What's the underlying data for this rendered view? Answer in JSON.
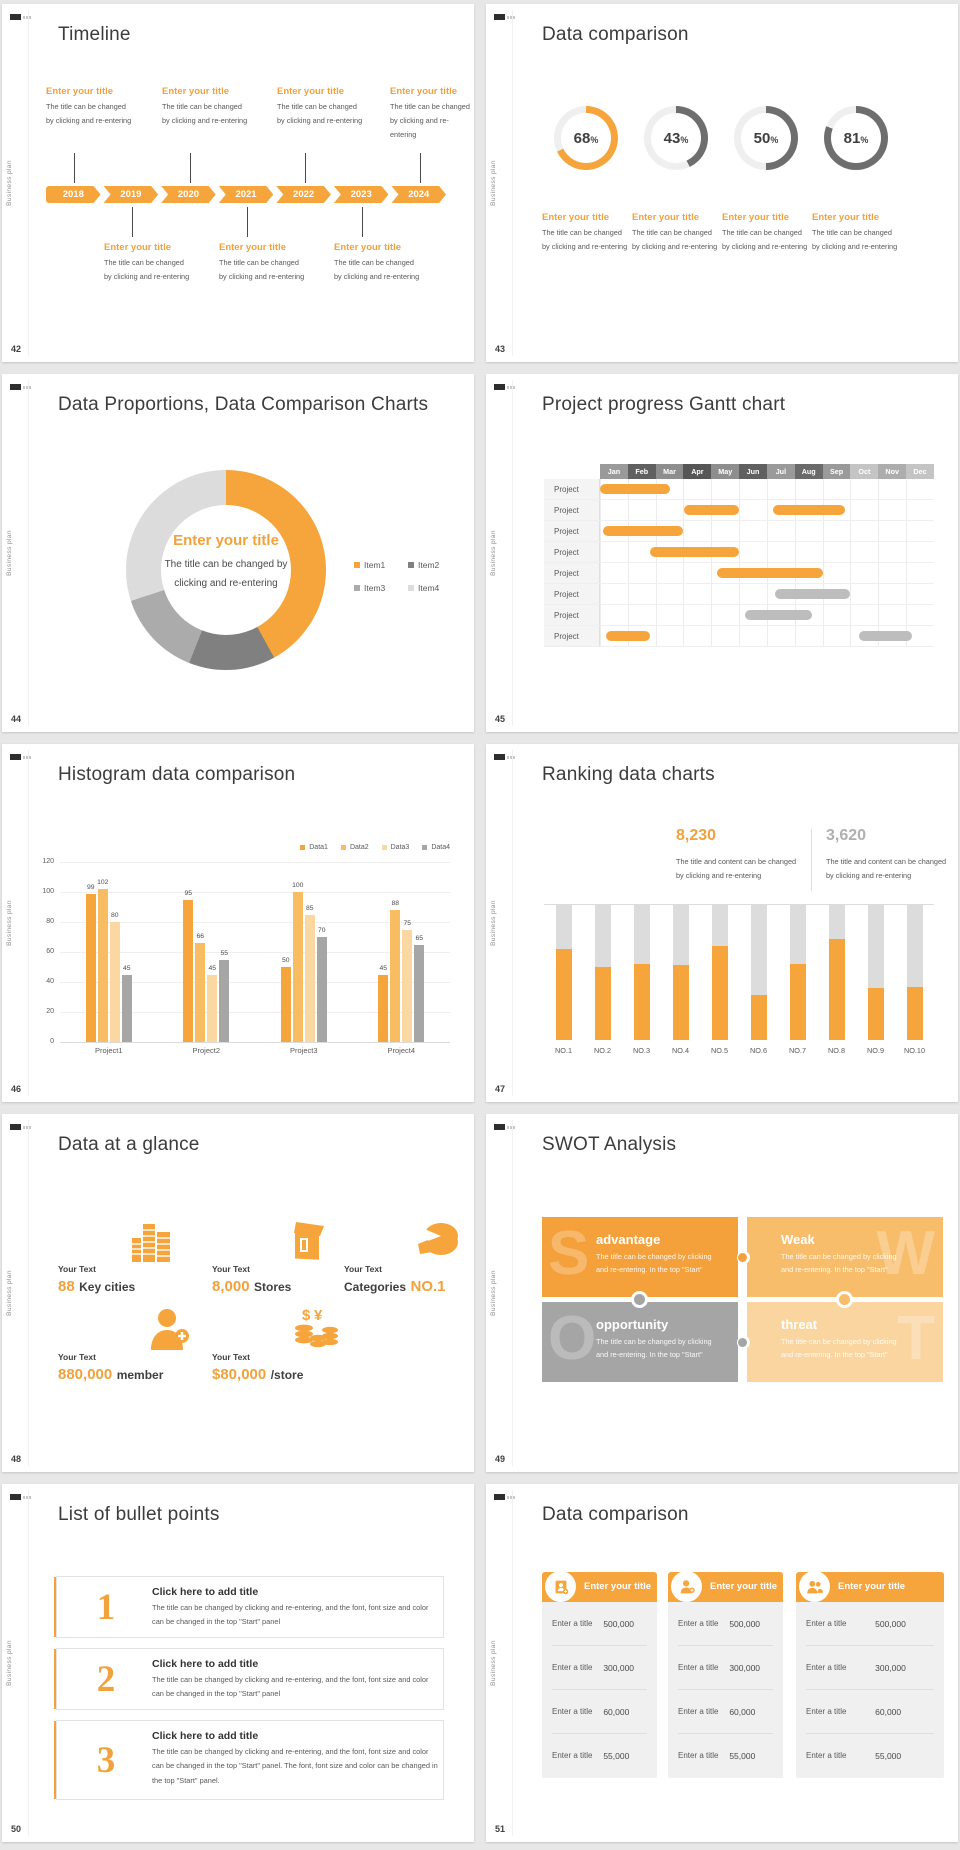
{
  "page": {
    "background": "#E7E7E7"
  },
  "colors": {
    "orange": "#F6A53C",
    "orange_light": "#F8BD6B",
    "orange_lighter": "#FBD7A2",
    "gray": "#A6A6A6",
    "gray_dark": "#707070",
    "text_dark": "#3F3F3F",
    "text_body": "#595959"
  },
  "common": {
    "sidebar_label": "Business plan"
  },
  "slide42": {
    "number": "42",
    "title": "Timeline",
    "years": [
      "2018",
      "2019",
      "2020",
      "2021",
      "2022",
      "2023",
      "2024"
    ],
    "top_items": [
      {
        "t": "Enter your title",
        "d1": "The title can be changed",
        "d2": "by clicking and re-entering"
      },
      {
        "t": "Enter your title",
        "d1": "The title can be changed",
        "d2": "by clicking and re-entering"
      },
      {
        "t": "Enter your title",
        "d1": "The title can be changed",
        "d2": "by clicking and re-entering"
      },
      {
        "t": "Enter your title",
        "d1": "The title can be changed",
        "d2": "by clicking and re-entering"
      }
    ],
    "bottom_items": [
      {
        "t": "Enter your title",
        "d1": "The title can be changed",
        "d2": "by clicking and re-entering"
      },
      {
        "t": "Enter your title",
        "d1": "The title can be changed",
        "d2": "by clicking and re-entering"
      },
      {
        "t": "Enter your title",
        "d1": "The title can be changed",
        "d2": "by clicking and re-entering"
      }
    ]
  },
  "slide43": {
    "number": "43",
    "title": "Data comparison",
    "ring_bg": "#EFEFEF",
    "donuts": [
      {
        "value": "68",
        "suffix": "%",
        "pct": 68,
        "color": "#F6A53C"
      },
      {
        "value": "43",
        "suffix": "%",
        "pct": 43,
        "color": "#6E6E6E"
      },
      {
        "value": "50",
        "suffix": "%",
        "pct": 50,
        "color": "#6E6E6E"
      },
      {
        "value": "81",
        "suffix": "%",
        "pct": 81,
        "color": "#6E6E6E"
      }
    ],
    "items": [
      {
        "t": "Enter your title",
        "d1": "The title can be changed",
        "d2": "by clicking and re-entering"
      },
      {
        "t": "Enter your title",
        "d1": "The title can be changed",
        "d2": "by clicking and re-entering"
      },
      {
        "t": "Enter your title",
        "d1": "The title can be changed",
        "d2": "by clicking and re-entering"
      },
      {
        "t": "Enter your title",
        "d1": "The title can be changed",
        "d2": "by clicking and re-entering"
      }
    ]
  },
  "slide44": {
    "number": "44",
    "title": "Data Proportions, Data Comparison Charts",
    "center_title": "Enter your title",
    "center_line1": "The title can be changed by",
    "center_line2": "clicking and re-entering",
    "chart": {
      "type": "pie",
      "segments": [
        {
          "label": "Item1",
          "pct": 42,
          "color": "#F6A53C"
        },
        {
          "label": "Item2",
          "pct": 14,
          "color": "#808080"
        },
        {
          "label": "Item3",
          "pct": 14,
          "color": "#ABABAB"
        },
        {
          "label": "Item4",
          "pct": 30,
          "color": "#DCDCDC"
        }
      ]
    }
  },
  "slide45": {
    "number": "45",
    "title": "Project progress Gantt chart",
    "months": [
      "Jan",
      "Feb",
      "Mar",
      "Apr",
      "May",
      "Jun",
      "Jul",
      "Aug",
      "Sep",
      "Oct",
      "Nov",
      "Dec"
    ],
    "header_colors": [
      "#9A9A9A",
      "#606060",
      "#8E8E8E",
      "#565656",
      "#8E8E8E",
      "#606060",
      "#9A9A9A",
      "#6A6A6A",
      "#9A9A9A",
      "#C4C4C4",
      "#ADADAD",
      "#C4C4C4"
    ],
    "row_label": "Project",
    "bar_colors": {
      "orange": "#F6A53C",
      "gray": "#BDBDBD"
    },
    "rows": [
      [
        {
          "start": 0,
          "len": 2.5,
          "color": "orange"
        }
      ],
      [
        {
          "start": 3,
          "len": 2,
          "color": "orange"
        },
        {
          "start": 6.2,
          "len": 2.6,
          "color": "orange"
        }
      ],
      [
        {
          "start": 0.1,
          "len": 2.9,
          "color": "orange"
        }
      ],
      [
        {
          "start": 1.8,
          "len": 3.2,
          "color": "orange"
        }
      ],
      [
        {
          "start": 4.2,
          "len": 3.8,
          "color": "orange"
        }
      ],
      [
        {
          "start": 6.3,
          "len": 2.7,
          "color": "gray"
        }
      ],
      [
        {
          "start": 5.2,
          "len": 2.4,
          "color": "gray"
        }
      ],
      [
        {
          "start": 0.2,
          "len": 1.6,
          "color": "orange"
        },
        {
          "start": 9.3,
          "len": 1.9,
          "color": "gray"
        }
      ]
    ]
  },
  "slide46": {
    "number": "46",
    "title": "Histogram data comparison",
    "chart": {
      "type": "bar",
      "categories": [
        "Project1",
        "Project2",
        "Project3",
        "Project4"
      ],
      "series": [
        {
          "name": "Data1",
          "color": "#F6A53C",
          "values": [
            99,
            95,
            50,
            45
          ]
        },
        {
          "name": "Data2",
          "color": "#F8BC62",
          "values": [
            102,
            66,
            100,
            88
          ]
        },
        {
          "name": "Data3",
          "color": "#FBD7A2",
          "values": [
            80,
            45,
            85,
            75
          ]
        },
        {
          "name": "Data4",
          "color": "#A6A6A6",
          "values": [
            45,
            55,
            70,
            65
          ]
        }
      ],
      "ylim": [
        0,
        120
      ],
      "ytick": 20,
      "legend_position": "top-right",
      "grid": true
    }
  },
  "slide47": {
    "number": "47",
    "title": "Ranking data charts",
    "stat1": {
      "value": "8,230",
      "d1": "The title and content can be changed",
      "d2": "by clicking and re-entering"
    },
    "stat2": {
      "value": "3,620",
      "d1": "The title and content can be changed",
      "d2": "by clicking and re-entering"
    },
    "chart": {
      "type": "bar",
      "categories": [
        "NO.1",
        "NO.2",
        "NO.3",
        "NO.4",
        "NO.5",
        "NO.6",
        "NO.7",
        "NO.8",
        "NO.9",
        "NO.10"
      ],
      "fill_pct": [
        67,
        54,
        56,
        55,
        69,
        33,
        56,
        74,
        38,
        39
      ],
      "bar_color": "#F6A53C",
      "track_color": "#DCDCDC"
    }
  },
  "slide48": {
    "number": "48",
    "title": "Data at a glance",
    "stats": [
      {
        "label_top": "Your Text",
        "value": "88",
        "label": "Key cities",
        "icon": "city-buildings"
      },
      {
        "label_top": "Your Text",
        "value": "8,000",
        "label": "Stores",
        "icon": "store"
      },
      {
        "label_top": "Your Text",
        "label": "Categories",
        "value": "NO.1",
        "icon": "pie"
      },
      {
        "label_top": "Your Text",
        "value": "880,000",
        "label": "member",
        "icon": "member-add"
      },
      {
        "label_top": "Your Text",
        "value": "$80,000",
        "label": "/store",
        "icon": "coins"
      }
    ]
  },
  "slide49": {
    "number": "49",
    "title": "SWOT Analysis",
    "quadrants": [
      {
        "letter": "S",
        "title": "advantage",
        "d1": "The title can be changed by clicking",
        "d2": "and re-entering. In the top \"Start\"",
        "color": "#F4A13B"
      },
      {
        "letter": "W",
        "title": "Weak",
        "d1": "The title can be changed by clicking",
        "d2": "and re-entering. In the top \"Start\"",
        "color": "#F8BD6B"
      },
      {
        "letter": "O",
        "title": "opportunity",
        "d1": "The title can be changed by clicking",
        "d2": "and re-entering. In the top \"Start\"",
        "color": "#A5A5A5"
      },
      {
        "letter": "T",
        "title": "threat",
        "d1": "The title can be changed by clicking",
        "d2": "and re-entering. In the top \"Start\"",
        "color": "#FAD5A0"
      }
    ]
  },
  "slide50": {
    "number": "50",
    "title": "List of bullet points",
    "items": [
      {
        "num": "1",
        "title": "Click here to add title",
        "body": "The title can be changed by clicking and re-entering, and the font, font size and color can be changed in the top \"Start\" panel"
      },
      {
        "num": "2",
        "title": "Click here to add title",
        "body": "The title can be changed by clicking and re-entering, and the font, font size and color can be changed in the top \"Start\" panel"
      },
      {
        "num": "3",
        "title": "Click here to add title",
        "body": "The title can be changed by clicking and re-entering, and the font, font size and color can be changed in the top \"Start\" panel. The font, font size and color can be changed in the top \"Start\" panel."
      }
    ]
  },
  "slide51": {
    "number": "51",
    "title": "Data comparison",
    "header_title": "Enter your title",
    "card_icons": [
      "id-card",
      "person-plus",
      "people"
    ],
    "rows": [
      {
        "label": "Enter a title",
        "value": "500,000"
      },
      {
        "label": "Enter a title",
        "value": "300,000"
      },
      {
        "label": "Enter a title",
        "value": "60,000"
      },
      {
        "label": "Enter a title",
        "value": "55,000"
      }
    ]
  }
}
